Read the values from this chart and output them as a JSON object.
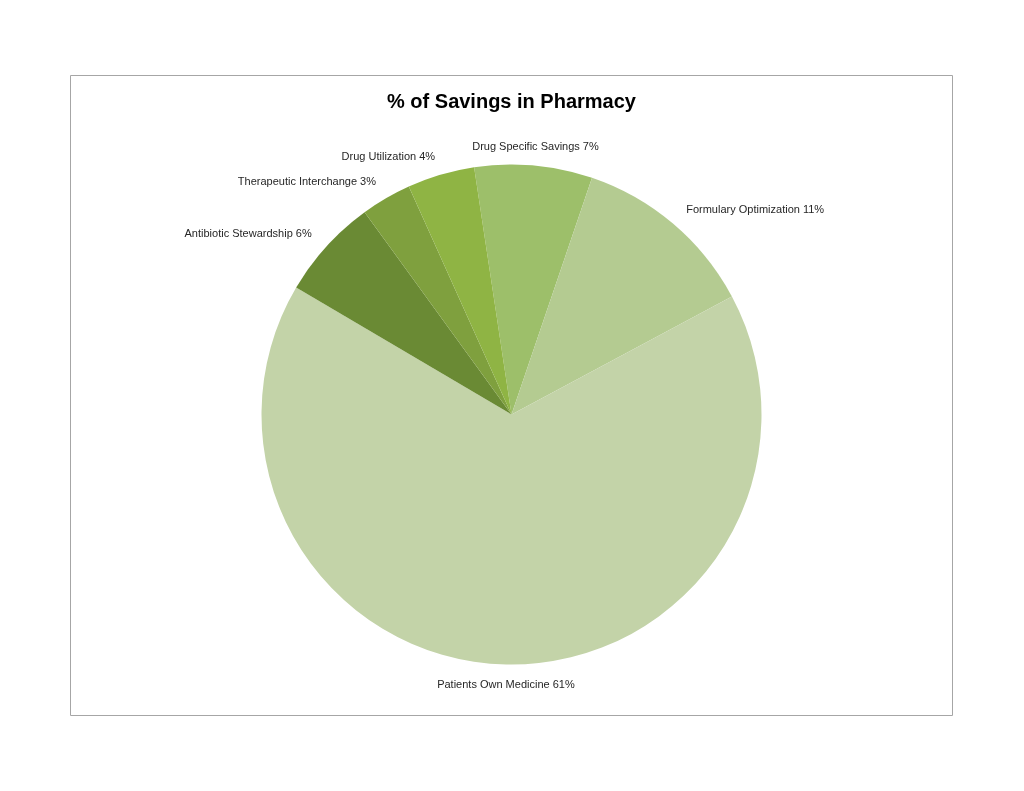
{
  "chart_data": {
    "type": "pie",
    "title": "% of Savings in Pharmacy",
    "categories": [
      "Drug Specific Savings",
      "Formulary Optimization",
      "Patients Own Medicine",
      "Antibiotic Stewardship",
      "Therapeutic Interchange",
      "Drug Utilization"
    ],
    "values": [
      7,
      11,
      61,
      6,
      3,
      4
    ],
    "colors": [
      "#9dbf6a",
      "#b4cb91",
      "#c3d3a8",
      "#6a8a34",
      "#7fa03e",
      "#8fb444"
    ],
    "value_labels": [
      "7%",
      "11%",
      "61%",
      "6%",
      "3%",
      "4%"
    ]
  }
}
